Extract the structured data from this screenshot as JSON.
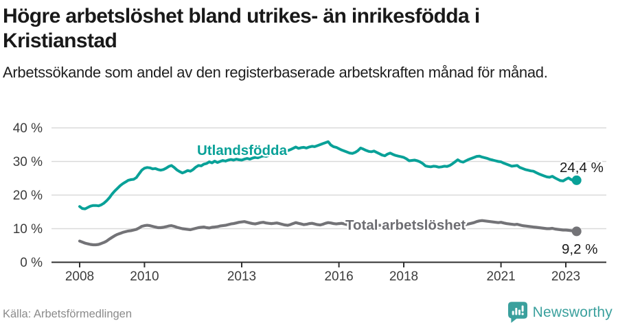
{
  "header": {
    "title_line1": "Högre arbetslöshet bland utrikes- än inrikesfödda i",
    "title_line2": "Kristianstad",
    "subtitle": "Arbetssökande som andel av den registerbaserade arbetskraften månad för månad."
  },
  "footer": {
    "source": "Källa: Arbetsförmedlingen",
    "brand_name": "Newsworthy",
    "brand_icon": "bar-chart-speech-bubble-icon",
    "brand_color": "#3aa09d"
  },
  "chart_data": {
    "type": "line",
    "title": "Högre arbetslöshet bland utrikes- än inrikesfödda i Kristianstad",
    "subtitle": "Arbetssökande som andel av den registerbaserade arbetskraften månad för månad.",
    "x_description": "monthly, 2008-01 through 2023-05",
    "x_start_year": 2008,
    "x_tick_labels": [
      "2008",
      "2010",
      "2013",
      "2016",
      "2018",
      "2021",
      "2023"
    ],
    "x_tick_years": [
      2008,
      2010,
      2013,
      2016,
      2018,
      2021,
      2023
    ],
    "y_tick_labels": [
      "0 %",
      "10 %",
      "20 %",
      "30 %",
      "40 %"
    ],
    "ylim": [
      0,
      40
    ],
    "grid": "horizontal",
    "legend_position": "inline-labels",
    "background": "#ffffff",
    "gridline_color": "#d9d9d9",
    "axis_color": "#2f2f2f",
    "series": [
      {
        "name": "Utlandsfödda",
        "color": "#09a198",
        "end_label": "24,4 %",
        "end_value": 24.4,
        "values": [
          16.6,
          16.0,
          15.9,
          16.3,
          16.7,
          16.9,
          16.9,
          16.8,
          17.1,
          17.6,
          18.3,
          19.2,
          20.3,
          21.2,
          22.0,
          22.8,
          23.4,
          23.9,
          24.4,
          24.6,
          24.7,
          25.2,
          26.3,
          27.4,
          28.0,
          28.2,
          28.1,
          27.8,
          27.9,
          27.6,
          27.4,
          27.6,
          28.0,
          28.5,
          28.8,
          28.2,
          27.5,
          27.0,
          26.6,
          26.9,
          27.3,
          27.1,
          27.6,
          28.3,
          28.8,
          28.7,
          29.2,
          29.4,
          29.9,
          29.6,
          30.1,
          29.7,
          30.0,
          30.3,
          30.1,
          30.4,
          30.6,
          30.4,
          30.7,
          30.5,
          30.4,
          30.7,
          30.9,
          30.7,
          31.0,
          31.2,
          31.1,
          31.4,
          31.7,
          31.5,
          31.8,
          32.0,
          31.9,
          32.2,
          32.4,
          32.6,
          32.9,
          33.2,
          33.5,
          33.9,
          34.3,
          33.9,
          34.1,
          34.2,
          34.0,
          34.3,
          34.5,
          34.4,
          34.7,
          35.0,
          35.3,
          35.6,
          35.9,
          34.9,
          34.4,
          34.2,
          33.8,
          33.4,
          33.1,
          32.8,
          32.5,
          32.4,
          32.7,
          33.2,
          34.0,
          33.7,
          33.3,
          33.0,
          32.9,
          33.1,
          32.7,
          32.3,
          31.9,
          31.7,
          32.2,
          32.5,
          32.1,
          31.8,
          31.6,
          31.4,
          31.2,
          30.8,
          30.2,
          30.3,
          30.4,
          30.2,
          29.9,
          29.4,
          28.7,
          28.5,
          28.4,
          28.6,
          28.5,
          28.3,
          28.4,
          28.6,
          28.5,
          28.8,
          29.3,
          29.9,
          30.5,
          30.0,
          29.8,
          30.2,
          30.6,
          30.9,
          31.2,
          31.5,
          31.6,
          31.3,
          31.1,
          30.9,
          30.6,
          30.4,
          30.2,
          30.0,
          29.9,
          29.5,
          29.2,
          28.9,
          28.6,
          28.7,
          28.8,
          28.2,
          27.9,
          27.6,
          27.4,
          27.2,
          27.1,
          26.7,
          26.3,
          26.0,
          25.7,
          25.4,
          25.3,
          25.6,
          25.1,
          24.7,
          24.3,
          24.2,
          24.7,
          25.1,
          24.6,
          24.2,
          24.4
        ]
      },
      {
        "name": "Total arbetslöshet",
        "color": "#737377",
        "end_label": "9,2 %",
        "end_value": 9.2,
        "values": [
          6.3,
          6.0,
          5.7,
          5.5,
          5.3,
          5.2,
          5.2,
          5.3,
          5.6,
          5.9,
          6.3,
          6.9,
          7.4,
          7.9,
          8.3,
          8.6,
          8.9,
          9.1,
          9.3,
          9.4,
          9.6,
          9.8,
          10.2,
          10.7,
          10.9,
          11.0,
          10.9,
          10.7,
          10.5,
          10.3,
          10.3,
          10.4,
          10.6,
          10.8,
          10.9,
          10.7,
          10.4,
          10.2,
          10.0,
          9.9,
          9.8,
          9.7,
          9.9,
          10.1,
          10.3,
          10.4,
          10.5,
          10.3,
          10.2,
          10.4,
          10.5,
          10.6,
          10.8,
          10.9,
          11.0,
          11.2,
          11.4,
          11.5,
          11.7,
          11.9,
          12.0,
          12.1,
          11.9,
          11.7,
          11.5,
          11.4,
          11.6,
          11.8,
          11.9,
          11.7,
          11.6,
          11.5,
          11.6,
          11.7,
          11.5,
          11.3,
          11.1,
          11.0,
          11.2,
          11.5,
          11.8,
          11.6,
          11.4,
          11.2,
          11.3,
          11.5,
          11.6,
          11.4,
          11.2,
          11.1,
          11.3,
          11.6,
          11.8,
          11.7,
          11.5,
          11.4,
          11.5,
          11.6,
          11.4,
          11.2,
          11.1,
          11.0,
          11.2,
          11.4,
          11.6,
          11.5,
          11.3,
          11.2,
          11.3,
          11.4,
          11.2,
          11.0,
          10.9,
          10.8,
          11.0,
          11.2,
          11.3,
          11.2,
          11.0,
          10.9,
          11.0,
          11.1,
          10.9,
          10.7,
          10.6,
          10.5,
          10.7,
          10.8,
          10.9,
          10.8,
          10.6,
          10.5,
          10.6,
          10.7,
          10.6,
          10.5,
          10.4,
          10.5,
          10.7,
          10.9,
          11.0,
          10.9,
          11.0,
          11.2,
          11.4,
          11.6,
          11.8,
          12.1,
          12.3,
          12.4,
          12.3,
          12.2,
          12.1,
          12.0,
          11.9,
          11.8,
          11.9,
          11.7,
          11.5,
          11.4,
          11.3,
          11.2,
          11.3,
          11.1,
          10.9,
          10.8,
          10.7,
          10.6,
          10.5,
          10.4,
          10.3,
          10.2,
          10.1,
          10.0,
          10.0,
          10.1,
          9.9,
          9.8,
          9.7,
          9.6,
          9.6,
          9.5,
          9.4,
          9.3,
          9.2
        ]
      }
    ]
  }
}
